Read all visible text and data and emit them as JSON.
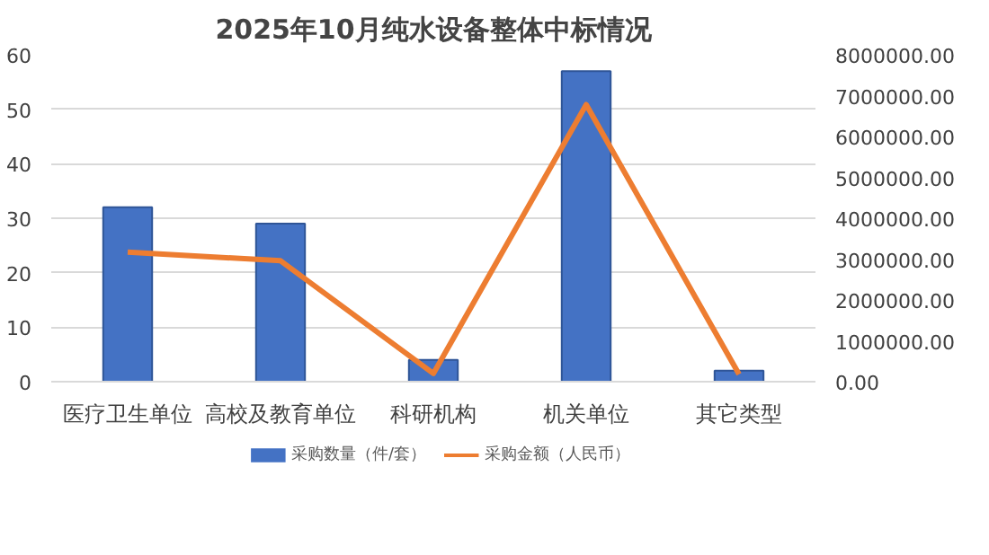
{
  "chart_data": {
    "type": "bar",
    "title": "2025年10月纯水设备整体中标情况",
    "categories": [
      "医疗卫生单位",
      "高校及教育单位",
      "科研机构",
      "机关单位",
      "其它类型"
    ],
    "series": [
      {
        "name": "采购数量（件/套）",
        "color": "#4472c4",
        "values": [
          32,
          29,
          4,
          57,
          2
        ]
      },
      {
        "name": "采购金额（人民币）",
        "color": "#ed7d31",
        "type": "line",
        "axis": "y2",
        "values": [
          3170000,
          2960000,
          200000,
          6780000,
          180000
        ]
      }
    ],
    "ylim": [
      0,
      60
    ],
    "yticks": [
      0,
      10,
      20,
      30,
      40,
      50,
      60
    ],
    "y2lim": [
      0,
      8000000
    ],
    "y2ticks": [
      {
        "value": 0,
        "label": "0.00"
      },
      {
        "value": 1000000,
        "label": "1000000.00"
      },
      {
        "value": 2000000,
        "label": "2000000.00"
      },
      {
        "value": 3000000,
        "label": "3000000.00"
      },
      {
        "value": 4000000,
        "label": "4000000.00"
      },
      {
        "value": 5000000,
        "label": "5000000.00"
      },
      {
        "value": 6000000,
        "label": "6000000.00"
      },
      {
        "value": 7000000,
        "label": "7000000.00"
      },
      {
        "value": 8000000,
        "label": "8000000.00"
      }
    ],
    "grid": "y",
    "legend": "bottom"
  }
}
